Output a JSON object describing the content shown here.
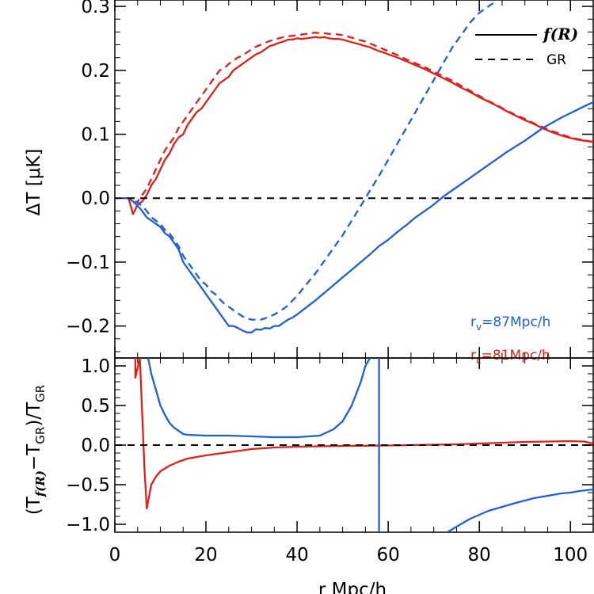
{
  "chart_data": [
    {
      "type": "line",
      "xlabel": "r Mpc/h",
      "ylabel": "ΔT [μK]",
      "xlim": [
        0,
        105
      ],
      "ylim": [
        -0.25,
        0.31
      ],
      "xticks": [
        0,
        20,
        40,
        60,
        80,
        100
      ],
      "yticks": [
        -0.2,
        -0.1,
        0.0,
        0.1,
        0.2,
        0.3
      ],
      "ytick_labels": [
        "−0.2",
        "−0.1",
        "0.0",
        "0.1",
        "0.2",
        "0.3"
      ],
      "legend": {
        "position": "top-right",
        "entries": [
          {
            "label": "f(R)",
            "style": "solid"
          },
          {
            "label": "GR",
            "style": "dashed"
          }
        ]
      },
      "annotations": [
        {
          "text": "r",
          "sub": "v",
          "rest": "=87Mpc/h",
          "color": "#1f5fd8"
        },
        {
          "text": "r",
          "sub": "c",
          "rest": "=81Mpc/h",
          "color": "#e0201b"
        }
      ],
      "reference_line": 0.0,
      "series": [
        {
          "color": "#e0201b",
          "style": "solid",
          "x": [
            2,
            3,
            4,
            5,
            6,
            7,
            8,
            9,
            10,
            11,
            12,
            13,
            14,
            15,
            16,
            17,
            18,
            19,
            20,
            21,
            22,
            23,
            24,
            25,
            26,
            27,
            28,
            29,
            30,
            31,
            32,
            33,
            34,
            35,
            36,
            37,
            38,
            39,
            40,
            41,
            42,
            43,
            44,
            45,
            46,
            47,
            48,
            49,
            50,
            51,
            52,
            53,
            54,
            55,
            56,
            57,
            58,
            59,
            60,
            62,
            64,
            66,
            68,
            70,
            72,
            74,
            76,
            78,
            80,
            82,
            84,
            86,
            88,
            90,
            92,
            94,
            96,
            98,
            100,
            102,
            105
          ],
          "y": [
            0,
            0,
            -0.025,
            -0.01,
            -0.005,
            0.005,
            0.02,
            0.03,
            0.045,
            0.06,
            0.07,
            0.085,
            0.095,
            0.1,
            0.115,
            0.125,
            0.135,
            0.14,
            0.15,
            0.16,
            0.17,
            0.18,
            0.185,
            0.19,
            0.2,
            0.205,
            0.21,
            0.215,
            0.22,
            0.225,
            0.228,
            0.233,
            0.238,
            0.24,
            0.243,
            0.245,
            0.248,
            0.248,
            0.25,
            0.249,
            0.25,
            0.251,
            0.252,
            0.251,
            0.252,
            0.25,
            0.249,
            0.249,
            0.248,
            0.246,
            0.244,
            0.242,
            0.24,
            0.238,
            0.236,
            0.233,
            0.23,
            0.228,
            0.225,
            0.22,
            0.214,
            0.208,
            0.202,
            0.195,
            0.188,
            0.181,
            0.173,
            0.166,
            0.158,
            0.151,
            0.144,
            0.136,
            0.129,
            0.122,
            0.116,
            0.109,
            0.103,
            0.098,
            0.094,
            0.091,
            0.088
          ]
        },
        {
          "color": "#e0201b",
          "style": "dashed",
          "x": [
            2,
            3,
            4,
            5,
            6,
            7,
            8,
            9,
            10,
            11,
            12,
            13,
            14,
            15,
            16,
            17,
            18,
            19,
            20,
            21,
            22,
            23,
            24,
            25,
            26,
            27,
            28,
            29,
            30,
            31,
            32,
            33,
            34,
            35,
            36,
            37,
            38,
            39,
            40,
            41,
            42,
            43,
            44,
            45,
            46,
            47,
            48,
            49,
            50,
            51,
            52,
            53,
            54,
            55,
            56,
            57,
            58,
            59,
            60,
            62,
            64,
            66,
            68,
            70,
            72,
            74,
            76,
            78,
            80,
            82,
            84,
            86,
            88,
            90,
            92,
            94,
            96,
            98,
            100,
            102,
            105
          ],
          "y": [
            0,
            0,
            -0.008,
            -0.005,
            0.005,
            0.015,
            0.03,
            0.045,
            0.06,
            0.075,
            0.085,
            0.095,
            0.11,
            0.12,
            0.13,
            0.14,
            0.15,
            0.16,
            0.17,
            0.18,
            0.19,
            0.2,
            0.203,
            0.21,
            0.215,
            0.22,
            0.223,
            0.228,
            0.233,
            0.237,
            0.24,
            0.243,
            0.246,
            0.248,
            0.25,
            0.252,
            0.253,
            0.254,
            0.255,
            0.256,
            0.257,
            0.258,
            0.259,
            0.258,
            0.258,
            0.257,
            0.257,
            0.256,
            0.255,
            0.253,
            0.251,
            0.249,
            0.247,
            0.245,
            0.242,
            0.239,
            0.236,
            0.233,
            0.23,
            0.224,
            0.217,
            0.211,
            0.205,
            0.198,
            0.191,
            0.184,
            0.176,
            0.168,
            0.16,
            0.152,
            0.145,
            0.137,
            0.13,
            0.124,
            0.117,
            0.111,
            0.105,
            0.1,
            0.095,
            0.092,
            0.088
          ]
        },
        {
          "color": "#1f5fd8",
          "style": "solid",
          "x": [
            2,
            3,
            4,
            5,
            6,
            7,
            8,
            9,
            10,
            11,
            12,
            13,
            14,
            15,
            16,
            17,
            18,
            19,
            20,
            21,
            22,
            23,
            24,
            25,
            26,
            27,
            28,
            29,
            30,
            31,
            32,
            33,
            34,
            35,
            36,
            37,
            38,
            39,
            40,
            42,
            44,
            46,
            48,
            50,
            52,
            54,
            56,
            58,
            60,
            62,
            64,
            66,
            68,
            70,
            72,
            74,
            76,
            78,
            80,
            82,
            84,
            86,
            88,
            90,
            92,
            94,
            96,
            98,
            100,
            102,
            104,
            105
          ],
          "y": [
            0,
            0,
            -0.005,
            -0.012,
            -0.02,
            -0.03,
            -0.035,
            -0.04,
            -0.045,
            -0.055,
            -0.06,
            -0.07,
            -0.08,
            -0.1,
            -0.11,
            -0.12,
            -0.13,
            -0.14,
            -0.15,
            -0.16,
            -0.17,
            -0.18,
            -0.19,
            -0.2,
            -0.2,
            -0.203,
            -0.207,
            -0.21,
            -0.21,
            -0.205,
            -0.206,
            -0.203,
            -0.204,
            -0.2,
            -0.2,
            -0.195,
            -0.19,
            -0.187,
            -0.182,
            -0.171,
            -0.16,
            -0.148,
            -0.136,
            -0.124,
            -0.112,
            -0.1,
            -0.088,
            -0.075,
            -0.065,
            -0.053,
            -0.042,
            -0.03,
            -0.02,
            -0.01,
            0.002,
            0.012,
            0.022,
            0.032,
            0.042,
            0.052,
            0.062,
            0.072,
            0.081,
            0.09,
            0.1,
            0.11,
            0.118,
            0.126,
            0.133,
            0.14,
            0.147,
            0.15
          ]
        },
        {
          "color": "#1f5fd8",
          "style": "dashed",
          "x": [
            2,
            3,
            4,
            5,
            6,
            7,
            8,
            9,
            10,
            11,
            12,
            13,
            14,
            15,
            16,
            17,
            18,
            19,
            20,
            21,
            22,
            23,
            24,
            25,
            26,
            27,
            28,
            29,
            30,
            31,
            32,
            33,
            34,
            35,
            36,
            37,
            38,
            39,
            40,
            42,
            44,
            46,
            48,
            50,
            52,
            54,
            56,
            58,
            60,
            62,
            64,
            66,
            68,
            70,
            72,
            74,
            76,
            78,
            80,
            82,
            84,
            86,
            88,
            90,
            92,
            94,
            96
          ],
          "y": [
            0,
            0,
            -0.003,
            -0.007,
            -0.012,
            -0.02,
            -0.03,
            -0.035,
            -0.04,
            -0.05,
            -0.055,
            -0.065,
            -0.075,
            -0.09,
            -0.1,
            -0.11,
            -0.12,
            -0.13,
            -0.135,
            -0.145,
            -0.15,
            -0.158,
            -0.165,
            -0.17,
            -0.175,
            -0.18,
            -0.185,
            -0.188,
            -0.19,
            -0.19,
            -0.19,
            -0.188,
            -0.185,
            -0.182,
            -0.178,
            -0.173,
            -0.168,
            -0.16,
            -0.153,
            -0.135,
            -0.118,
            -0.098,
            -0.078,
            -0.058,
            -0.035,
            -0.012,
            0.012,
            0.035,
            0.06,
            0.085,
            0.11,
            0.135,
            0.16,
            0.185,
            0.21,
            0.235,
            0.255,
            0.275,
            0.29,
            0.3,
            0.31,
            0.32,
            0.33,
            0.34,
            0.35,
            0.36,
            0.37
          ]
        }
      ]
    },
    {
      "type": "line",
      "xlabel": "r Mpc/h",
      "ylabel_parts": [
        "(T",
        "f(R)",
        "−T",
        "GR",
        ")/T",
        "GR"
      ],
      "xlim": [
        0,
        105
      ],
      "ylim": [
        -1.1,
        1.1
      ],
      "xticks": [
        0,
        20,
        40,
        60,
        80,
        100
      ],
      "xtick_labels": [
        "0",
        "20",
        "40",
        "60",
        "80",
        "100"
      ],
      "yticks": [
        -1.0,
        -0.5,
        0.0,
        0.5,
        1.0
      ],
      "ytick_labels": [
        "−1.0",
        "−0.5",
        "0.0",
        "0.5",
        "1.0"
      ],
      "reference_line": 0.0,
      "series": [
        {
          "color": "#e0201b",
          "style": "solid",
          "x": [
            4.5,
            4.5,
            5.5,
            6.5,
            7,
            8,
            9,
            10,
            12,
            14,
            16,
            18,
            20,
            25,
            30,
            35,
            40,
            45,
            50,
            55,
            60,
            65,
            70,
            75,
            80,
            85,
            90,
            95,
            100,
            103,
            105
          ],
          "y": [
            1.1,
            0.85,
            1.1,
            -0.3,
            -0.8,
            -0.5,
            -0.4,
            -0.33,
            -0.26,
            -0.21,
            -0.17,
            -0.15,
            -0.13,
            -0.09,
            -0.05,
            -0.03,
            -0.02,
            -0.015,
            -0.01,
            -0.008,
            -0.005,
            0,
            0.005,
            0.01,
            0.02,
            0.03,
            0.04,
            0.045,
            0.05,
            0.045,
            0.02
          ]
        },
        {
          "color": "#1f5fd8",
          "style": "solid",
          "x": [
            7.3,
            8,
            9,
            10,
            11,
            12,
            13,
            14,
            15,
            16,
            18,
            20,
            22,
            25,
            30,
            35,
            40,
            45,
            48,
            50,
            52,
            54,
            55,
            56
          ],
          "y": [
            1.1,
            0.9,
            0.7,
            0.5,
            0.38,
            0.28,
            0.22,
            0.18,
            0.14,
            0.13,
            0.125,
            0.12,
            0.12,
            0.12,
            0.11,
            0.1,
            0.1,
            0.12,
            0.2,
            0.3,
            0.5,
            0.8,
            1.0,
            1.1
          ]
        },
        {
          "color": "#1f5fd8",
          "style": "solid",
          "x": [
            58,
            58
          ],
          "y": [
            1.1,
            -1.1
          ]
        },
        {
          "color": "#1f5fd8",
          "style": "solid",
          "x": [
            73,
            75,
            78,
            80,
            82,
            85,
            88,
            90,
            92,
            95,
            98,
            100,
            102,
            105
          ],
          "y": [
            -1.1,
            -1.03,
            -0.93,
            -0.88,
            -0.83,
            -0.78,
            -0.73,
            -0.7,
            -0.67,
            -0.64,
            -0.61,
            -0.6,
            -0.58,
            -0.56
          ]
        }
      ]
    }
  ]
}
